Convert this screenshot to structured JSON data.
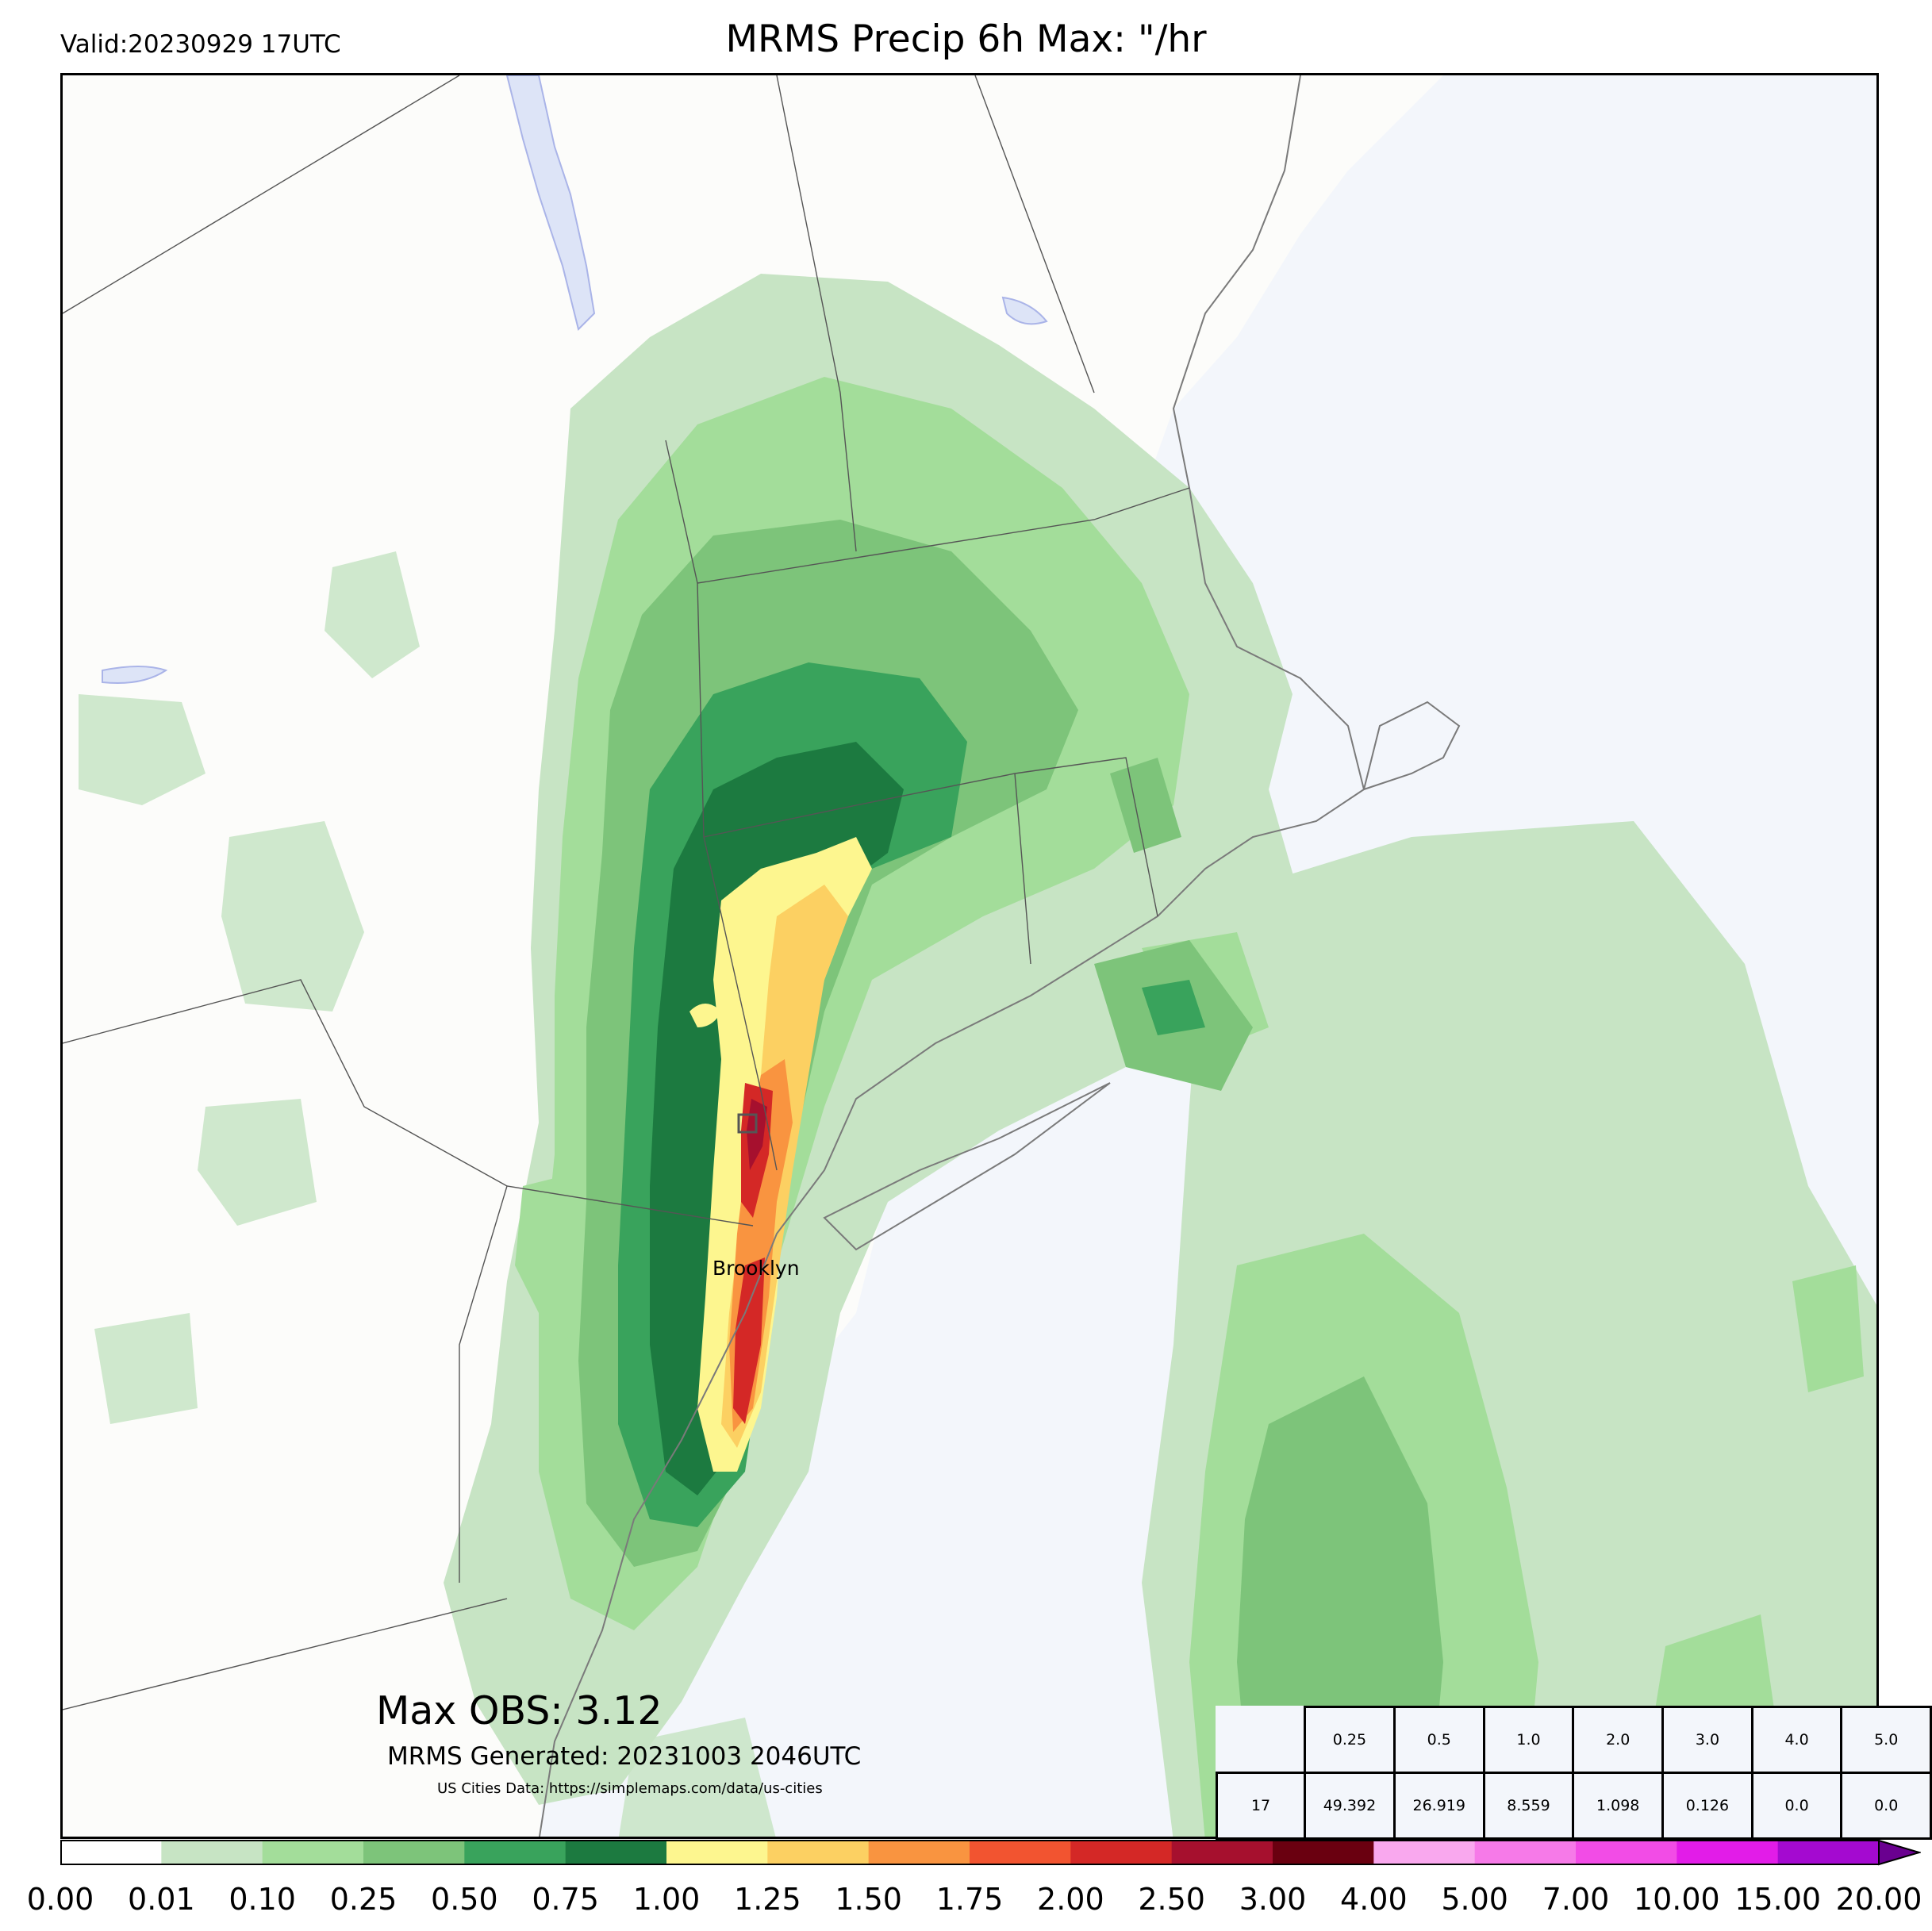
{
  "header": {
    "valid": "Valid:20230929 17UTC",
    "title": "MRMS Precip 6h Max: \"/hr"
  },
  "annotations": {
    "max_obs": "Max OBS: 3.12",
    "generated": "MRMS Generated: 20231003 2046UTC",
    "cities_source": "US Cities Data: https://simplemaps.com/data/us-cities"
  },
  "cities": [
    {
      "name": "Brooklyn"
    }
  ],
  "stats_table": {
    "thresholds": [
      "0.25",
      "0.5",
      "1.0",
      "2.0",
      "3.0",
      "4.0",
      "5.0"
    ],
    "row_label": "17",
    "values": [
      "49.392",
      "26.919",
      "8.559",
      "1.098",
      "0.126",
      "0.0",
      "0.0"
    ]
  },
  "colorbar": {
    "ticks": [
      "0.00",
      "0.01",
      "0.10",
      "0.25",
      "0.50",
      "0.75",
      "1.00",
      "1.25",
      "1.50",
      "1.75",
      "2.00",
      "2.50",
      "3.00",
      "4.00",
      "5.00",
      "7.00",
      "10.00",
      "15.00",
      "20.00"
    ],
    "colors": [
      "#ffffff",
      "#c7e4c4",
      "#a3dd9a",
      "#7dc47a",
      "#39a35c",
      "#1c7a40",
      "#fdf68f",
      "#fcd062",
      "#f99440",
      "#f25430",
      "#d42826",
      "#a6102e",
      "#6a0010",
      "#f9a8ee",
      "#f67ae8",
      "#f24ce6",
      "#e21ce8",
      "#a40ad0",
      "#6a0090"
    ],
    "extend_color": "#6a0090"
  },
  "map_colors": {
    "ocean": "#f3f6fb",
    "land": "#fcfcfa",
    "lakes": "#dde4f7"
  }
}
